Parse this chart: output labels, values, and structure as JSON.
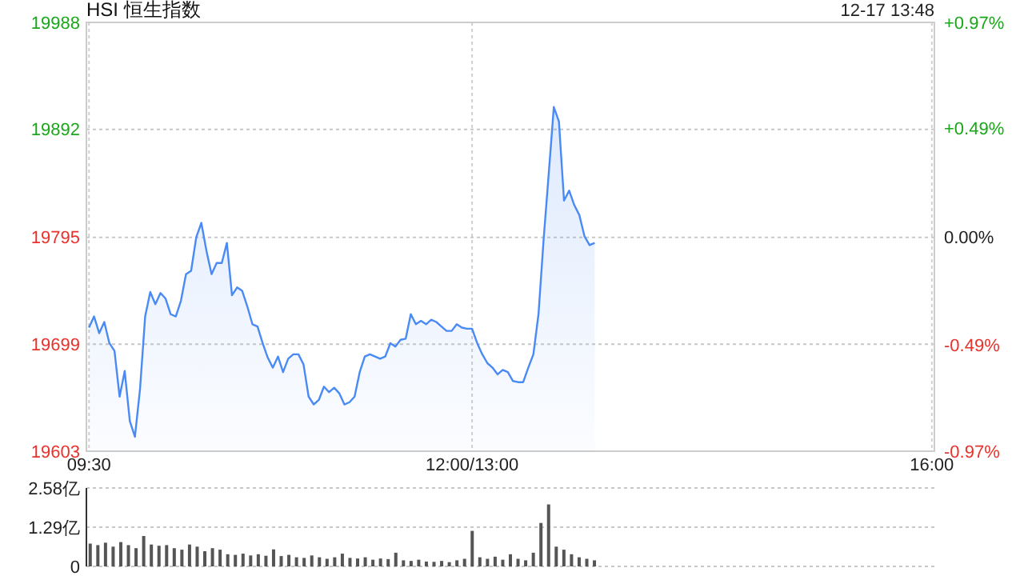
{
  "chart_data": [
    {
      "type": "area",
      "title": "HSI 恒生指数",
      "subtitle": "12-17 13:48",
      "categories": [
        "09:30",
        null,
        null,
        null,
        null,
        null,
        null,
        null,
        null,
        null,
        null,
        null,
        null,
        null,
        null,
        null,
        null,
        null,
        null,
        null,
        null,
        null,
        null,
        null,
        null,
        null,
        null,
        null,
        null,
        null,
        null,
        null,
        null,
        null,
        null,
        null,
        null,
        null,
        null,
        null,
        null,
        null,
        null,
        null,
        null,
        null,
        null,
        null,
        null,
        null,
        null,
        null,
        null,
        null,
        null,
        null,
        null,
        null,
        null,
        null,
        null,
        null,
        null,
        null,
        null,
        null,
        null,
        null,
        null,
        null,
        null,
        null,
        null,
        null,
        null,
        "12:00/13:00",
        null,
        null,
        null,
        null,
        null,
        null,
        null,
        null,
        null,
        null,
        null,
        null,
        null,
        null,
        null,
        null,
        null,
        null,
        null,
        null,
        null,
        null,
        null,
        null,
        null,
        null,
        null,
        null,
        null,
        null,
        null,
        null,
        null,
        null,
        null,
        null,
        null,
        null,
        null,
        null,
        null,
        null,
        null,
        null,
        null,
        null,
        null,
        null,
        null,
        null,
        null,
        null,
        null,
        null,
        null,
        null,
        null,
        null,
        null,
        null,
        null,
        null,
        null,
        null,
        null,
        null,
        null,
        null,
        null,
        null,
        null,
        null,
        null,
        null,
        null,
        null,
        null,
        null,
        null,
        null,
        null,
        null,
        null,
        null,
        null,
        null,
        null,
        null,
        null,
        "16:00"
      ],
      "series": [
        {
          "color": "#4a8af4",
          "values": [
            19714,
            19724,
            19709,
            19719,
            19700,
            19693,
            19652,
            19675,
            19630,
            19616,
            19659,
            19724,
            19746,
            19735,
            19745,
            19740,
            19726,
            19724,
            19738,
            19762,
            19765,
            19795,
            19808,
            19783,
            19762,
            19772,
            19772,
            19790,
            19743,
            19750,
            19747,
            19733,
            19717,
            19715,
            19700,
            19687,
            19678,
            19688,
            19674,
            19686,
            19690,
            19690,
            19681,
            19652,
            19645,
            19649,
            19661,
            19656,
            19660,
            19655,
            19645,
            19647,
            19652,
            19674,
            19688,
            19690,
            19688,
            19686,
            19688,
            19700,
            19697,
            19703,
            19704,
            19726,
            19717,
            19720,
            19717,
            19721,
            19719,
            19715,
            19711,
            19711,
            19717,
            19714,
            19713,
            19713,
            19700,
            19690,
            19682,
            19678,
            19672,
            19676,
            19674,
            19666,
            19665,
            19665,
            19678,
            19690,
            19726,
            19793,
            19852,
            19912,
            19899,
            19828,
            19837,
            19824,
            19815,
            19796,
            19788,
            19790,
            null,
            null,
            null,
            null,
            null,
            null,
            null,
            null,
            null,
            null,
            null,
            null,
            null,
            null,
            null,
            null,
            null,
            null,
            null,
            null,
            null,
            null,
            null,
            null,
            null,
            null,
            null,
            null,
            null,
            null,
            null,
            null,
            null,
            null,
            null,
            null,
            null,
            null,
            null,
            null,
            null,
            null,
            null,
            null,
            null,
            null,
            null,
            null,
            null,
            null,
            null,
            null,
            null,
            null,
            null,
            null,
            null,
            null,
            null,
            null,
            null,
            null,
            null,
            null,
            null,
            null
          ]
        }
      ],
      "ylim": [
        19603,
        19988
      ],
      "yticks": [
        19603,
        19699,
        19795,
        19892,
        19988
      ],
      "y2lim": [
        -0.97,
        0.97
      ],
      "y2ticks": [
        {
          "value": -0.97,
          "label": "-0.97%"
        },
        {
          "value": -0.49,
          "label": "-0.49%"
        },
        {
          "value": 0,
          "label": "0.00%"
        },
        {
          "value": 0.49,
          "label": "+0.49%"
        },
        {
          "value": 0.97,
          "label": "+0.97%"
        }
      ],
      "grid": true
    },
    {
      "type": "bar",
      "categories": [
        null,
        null,
        null,
        null,
        null,
        null,
        null,
        null,
        null,
        null,
        null,
        null,
        null,
        null,
        null,
        null,
        null,
        null,
        null,
        null,
        null,
        null,
        null,
        null,
        null,
        null,
        null,
        null,
        null,
        null,
        null,
        null,
        null,
        null,
        null,
        null,
        null,
        null,
        null,
        null,
        null,
        null,
        null,
        null,
        null,
        null,
        null,
        null,
        null,
        null,
        null,
        null,
        null,
        null,
        null,
        null,
        null,
        null,
        null,
        null,
        null,
        null,
        null,
        null,
        null,
        null,
        null,
        null,
        null,
        null,
        null,
        null,
        null,
        null,
        null,
        null,
        null,
        null,
        null,
        null,
        null,
        null,
        null,
        null,
        null,
        null,
        null,
        null,
        null,
        null,
        null,
        null,
        null,
        null,
        null,
        null,
        null,
        null,
        null,
        null,
        null,
        null,
        null,
        null,
        null,
        null,
        null,
        null,
        null,
        null,
        null
      ],
      "series": [
        {
          "color": "#555555",
          "values": [
            0.75,
            0.7,
            0.78,
            0.65,
            0.8,
            0.7,
            0.6,
            1.0,
            0.72,
            0.68,
            0.7,
            0.6,
            0.55,
            0.72,
            0.65,
            0.5,
            0.6,
            0.55,
            0.4,
            0.38,
            0.42,
            0.36,
            0.4,
            0.35,
            0.56,
            0.34,
            0.38,
            0.3,
            0.28,
            0.36,
            0.3,
            0.25,
            0.3,
            0.42,
            0.28,
            0.26,
            0.3,
            0.22,
            0.26,
            0.24,
            0.45,
            0.2,
            0.18,
            0.22,
            0.16,
            0.15,
            0.18,
            0.14,
            0.2,
            0.25,
            1.17,
            0.3,
            0.25,
            0.32,
            0.22,
            0.4,
            0.25,
            0.2,
            0.45,
            1.43,
            2.04,
            0.65,
            0.55,
            0.4,
            0.3,
            0.25,
            0.2,
            null,
            null,
            null,
            null,
            null,
            null,
            null,
            null,
            null,
            null,
            null,
            null,
            null,
            null,
            null,
            null,
            null,
            null,
            null,
            null,
            null,
            null,
            null,
            null,
            null,
            null,
            null,
            null,
            null,
            null,
            null,
            null,
            null,
            null,
            null,
            null,
            null,
            null,
            null,
            null,
            null,
            null,
            null,
            null
          ]
        }
      ],
      "ylim": [
        0,
        2.58
      ],
      "yticks": [
        0,
        {
          "value": 1.29,
          "label": "1.29亿"
        },
        {
          "value": 2.58,
          "label": "2.58亿"
        }
      ],
      "grid": "y",
      "tick_labels": "y"
    }
  ]
}
